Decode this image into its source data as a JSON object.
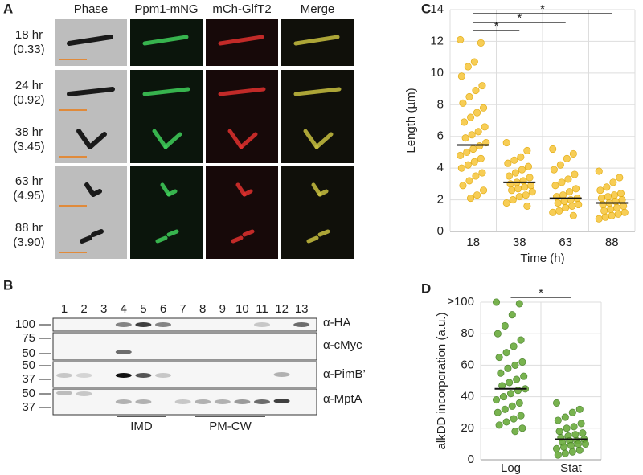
{
  "panel_labels": [
    "A",
    "B",
    "C",
    "D"
  ],
  "microscopy": {
    "columns": [
      "Phase",
      "Ppm1-mNG",
      "mCh-GlfT2",
      "Merge"
    ],
    "rows": [
      {
        "time": "18 hr",
        "ratio": "(0.33)"
      },
      {
        "time": "24 hr",
        "ratio": "(0.92)"
      },
      {
        "time": "38 hr",
        "ratio": "(3.45)"
      },
      {
        "time": "63 hr",
        "ratio": "(4.95)"
      },
      {
        "time": "88 hr",
        "ratio": "(3.90)"
      }
    ]
  },
  "western_blot": {
    "lanes": [
      "1",
      "2",
      "3",
      "4",
      "5",
      "6",
      "7",
      "8",
      "9",
      "10",
      "11",
      "12",
      "13"
    ],
    "blots": [
      {
        "antibody": "α-HA",
        "markers": [
          "100"
        ]
      },
      {
        "antibody": "α-cMyc",
        "markers": [
          "75",
          "50"
        ]
      },
      {
        "antibody": "α-PimB’",
        "markers": [
          "50",
          "37"
        ]
      },
      {
        "antibody": "α-MptA",
        "markers": [
          "50",
          "37"
        ]
      }
    ],
    "fractions": [
      "IMD",
      "PM-CW"
    ]
  },
  "chart_data": [
    {
      "type": "strip",
      "xlabel": "Time (h)",
      "ylabel": "Length (µm)",
      "categories": [
        "18",
        "38",
        "63",
        "88"
      ],
      "values": [
        [
          12.1,
          11.9,
          10.7,
          10.4,
          9.8,
          9.2,
          8.9,
          8.5,
          8.1,
          7.8,
          7.5,
          7.2,
          6.9,
          6.6,
          6.3,
          6.1,
          5.9,
          5.6,
          5.4,
          5.2,
          5.0,
          4.8,
          4.6,
          4.4,
          4.2,
          4.0,
          3.7,
          3.5,
          3.2,
          2.9,
          2.6,
          2.3,
          2.1
        ],
        [
          5.6,
          5.1,
          4.7,
          4.5,
          4.3,
          4.1,
          3.9,
          3.7,
          3.5,
          3.4,
          3.2,
          3.1,
          3.0,
          2.9,
          2.8,
          2.7,
          2.6,
          2.5,
          2.3,
          2.2,
          2.0,
          1.8,
          1.6
        ],
        [
          5.2,
          4.9,
          4.6,
          4.2,
          3.9,
          3.6,
          3.3,
          3.1,
          2.9,
          2.7,
          2.5,
          2.3,
          2.2,
          2.1,
          2.0,
          1.9,
          1.8,
          1.7,
          1.6,
          1.5,
          1.3,
          1.2,
          1.0
        ],
        [
          3.8,
          3.4,
          3.1,
          2.8,
          2.6,
          2.4,
          2.3,
          2.2,
          2.1,
          2.0,
          1.9,
          1.8,
          1.7,
          1.6,
          1.5,
          1.4,
          1.3,
          1.2,
          1.1,
          1.0,
          0.9,
          0.8
        ]
      ],
      "means": [
        5.45,
        3.1,
        2.1,
        1.8
      ],
      "color": "#f7c843",
      "edge": "#e0a600",
      "ylim": [
        0,
        14
      ],
      "yticks": [
        0,
        2,
        4,
        6,
        8,
        10,
        12,
        14
      ],
      "grid": true,
      "annotations": [
        {
          "text": "*",
          "between": [
            "18",
            "38"
          ]
        },
        {
          "text": "*",
          "between": [
            "18",
            "63"
          ]
        },
        {
          "text": "*",
          "between": [
            "18",
            "88"
          ]
        }
      ]
    },
    {
      "type": "strip",
      "ylabel": "alkDD incorporation (a.u.)",
      "categories": [
        "Log",
        "Stat"
      ],
      "values": [
        [
          100,
          99,
          92,
          85,
          80,
          76,
          72,
          68,
          65,
          62,
          60,
          58,
          55,
          53,
          51,
          49,
          47,
          45,
          44,
          42,
          40,
          38,
          36,
          34,
          32,
          30,
          28,
          26,
          24,
          22,
          20,
          18
        ],
        [
          36,
          32,
          30,
          27,
          25,
          23,
          21,
          20,
          18,
          17,
          16,
          15,
          14,
          13,
          12,
          12,
          11,
          10,
          10,
          9,
          8,
          7,
          6,
          5,
          4,
          3
        ]
      ],
      "means": [
        45,
        13
      ],
      "color": "#6aab3c",
      "edge": "#3f7a1f",
      "ylim": [
        0,
        100
      ],
      "yticks": [
        0,
        20,
        40,
        60,
        80,
        {
          "value": 100,
          "label": "≥100"
        }
      ],
      "grid": true,
      "annotations": [
        {
          "text": "*",
          "between": [
            "Log",
            "Stat"
          ]
        }
      ]
    }
  ]
}
